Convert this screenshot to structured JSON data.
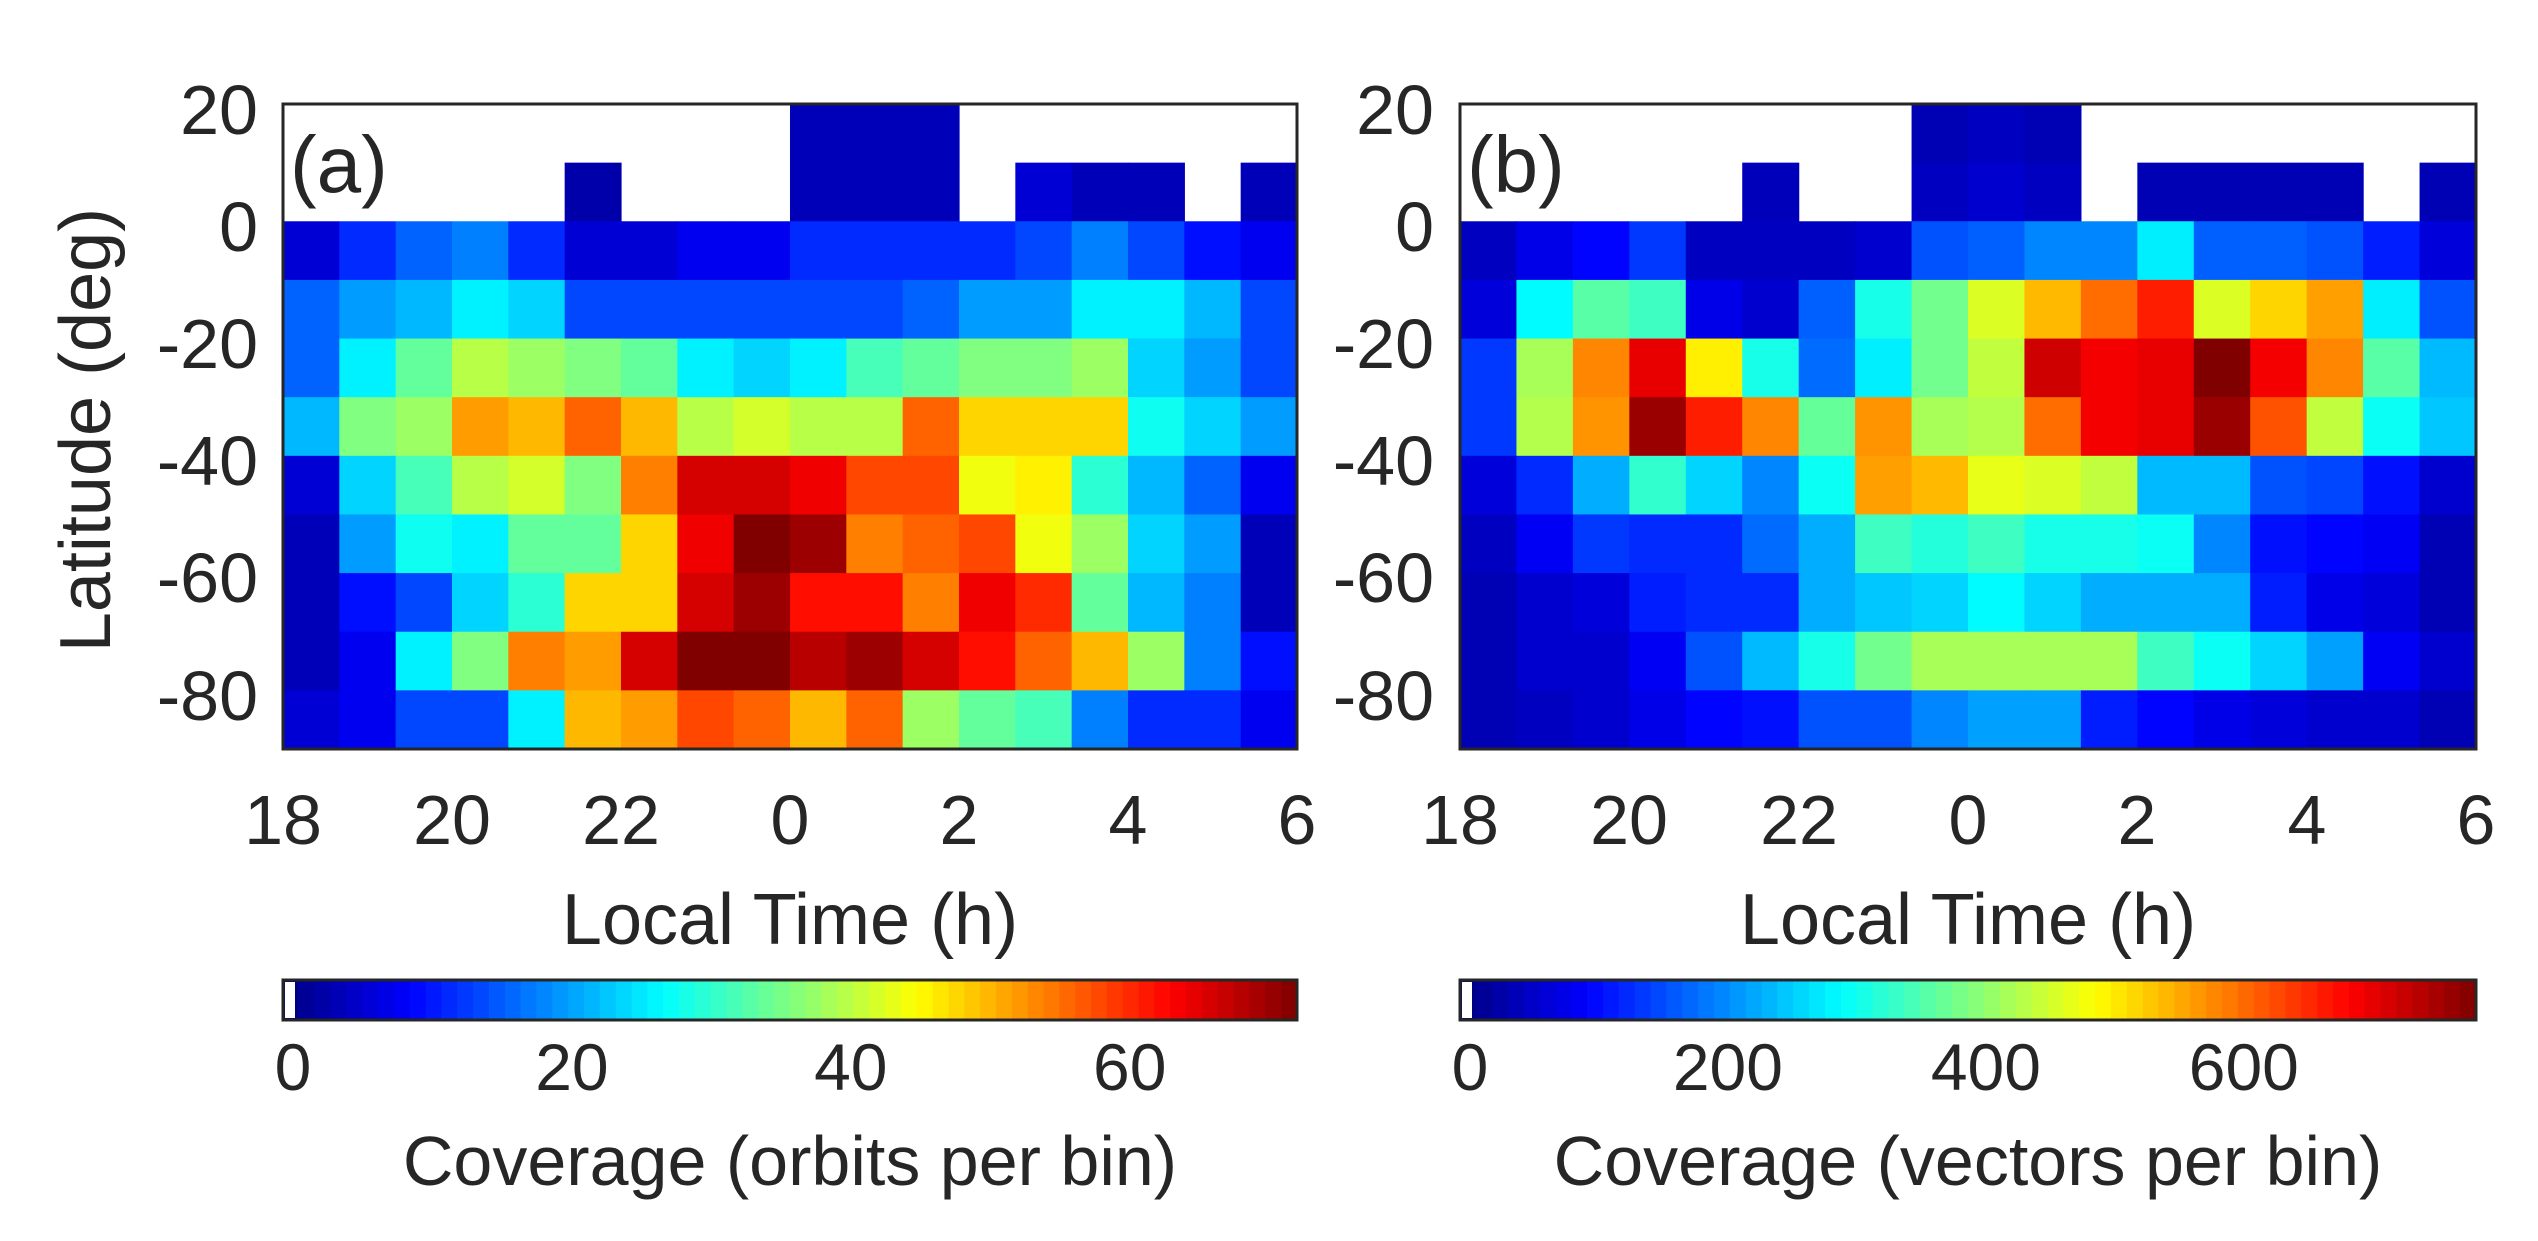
{
  "chart_data": [
    {
      "type": "heatmap",
      "panel_label": "(a)",
      "xlabel": "Local Time (h)",
      "ylabel": "Latitude (deg)",
      "x_tick_labels": [
        "18",
        "20",
        "22",
        "0",
        "2",
        "4",
        "6"
      ],
      "y_tick_labels": [
        "20",
        "0",
        "-20",
        "-40",
        "-60",
        "-80"
      ],
      "x_bins_local_time_start": [
        18,
        18.667,
        19.333,
        20,
        20.667,
        21.333,
        22,
        22.667,
        23.333,
        0,
        0.667,
        1.333,
        2,
        2.667,
        3.333,
        4,
        4.667,
        5.333
      ],
      "bin_width_hours": 0.667,
      "y_bins_latitude_top": [
        20,
        10,
        0,
        -10,
        -20,
        -30,
        -40,
        -50,
        -60,
        -70,
        -80
      ],
      "bin_height_deg": 10,
      "ylim": [
        -90,
        20
      ],
      "colorbar": {
        "label": "Coverage (orbits per bin)",
        "min": 0,
        "max": 72,
        "tick_labels": [
          "0",
          "20",
          "40",
          "60"
        ],
        "tick_values": [
          0,
          20,
          40,
          60
        ]
      },
      "values": [
        [
          null,
          null,
          null,
          null,
          null,
          null,
          null,
          null,
          null,
          4,
          4,
          4,
          null,
          null,
          null,
          null,
          null,
          null
        ],
        [
          null,
          null,
          null,
          null,
          null,
          3,
          null,
          null,
          null,
          4,
          4,
          4,
          null,
          6,
          4,
          4,
          null,
          4
        ],
        [
          6,
          12,
          16,
          18,
          12,
          6,
          6,
          8,
          8,
          12,
          12,
          12,
          12,
          14,
          18,
          14,
          10,
          8
        ],
        [
          16,
          20,
          22,
          26,
          24,
          14,
          14,
          14,
          14,
          14,
          14,
          16,
          20,
          20,
          26,
          26,
          22,
          14
        ],
        [
          16,
          26,
          34,
          40,
          38,
          36,
          34,
          26,
          24,
          26,
          32,
          34,
          36,
          36,
          38,
          24,
          20,
          14
        ],
        [
          22,
          36,
          38,
          52,
          50,
          56,
          50,
          40,
          42,
          40,
          40,
          56,
          48,
          48,
          48,
          28,
          24,
          20
        ],
        [
          6,
          24,
          32,
          40,
          42,
          36,
          54,
          66,
          66,
          64,
          58,
          58,
          44,
          46,
          30,
          22,
          16,
          8
        ],
        [
          4,
          20,
          28,
          26,
          34,
          34,
          48,
          64,
          72,
          70,
          54,
          56,
          58,
          44,
          38,
          24,
          20,
          4
        ],
        [
          4,
          10,
          14,
          24,
          30,
          48,
          48,
          66,
          70,
          62,
          62,
          54,
          64,
          60,
          34,
          22,
          18,
          4
        ],
        [
          4,
          8,
          26,
          36,
          54,
          52,
          66,
          72,
          72,
          68,
          70,
          66,
          62,
          56,
          50,
          38,
          18,
          10
        ],
        [
          6,
          8,
          14,
          14,
          26,
          50,
          52,
          58,
          56,
          50,
          56,
          38,
          34,
          32,
          18,
          12,
          12,
          8
        ]
      ]
    },
    {
      "type": "heatmap",
      "panel_label": "(b)",
      "xlabel": "Local Time (h)",
      "ylabel": "",
      "x_tick_labels": [
        "18",
        "20",
        "22",
        "0",
        "2",
        "4",
        "6"
      ],
      "y_tick_labels": [
        "20",
        "0",
        "-20",
        "-40",
        "-60",
        "-80"
      ],
      "x_bins_local_time_start": [
        18,
        18.667,
        19.333,
        20,
        20.667,
        21.333,
        22,
        22.667,
        23.333,
        0,
        0.667,
        1.333,
        2,
        2.667,
        3.333,
        4,
        4.667,
        5.333
      ],
      "bin_width_hours": 0.667,
      "y_bins_latitude_top": [
        20,
        10,
        0,
        -10,
        -20,
        -30,
        -40,
        -50,
        -60,
        -70,
        -80
      ],
      "bin_height_deg": 10,
      "ylim": [
        -90,
        20
      ],
      "colorbar": {
        "label": "Coverage (vectors per bin)",
        "min": 0,
        "max": 780,
        "tick_labels": [
          "0",
          "200",
          "400",
          "600"
        ],
        "tick_values": [
          0,
          200,
          400,
          600
        ]
      },
      "values": [
        [
          null,
          null,
          null,
          null,
          null,
          null,
          null,
          null,
          40,
          50,
          40,
          null,
          null,
          null,
          null,
          null,
          null,
          null
        ],
        [
          null,
          null,
          null,
          null,
          null,
          45,
          null,
          null,
          50,
          60,
          50,
          null,
          40,
          40,
          40,
          40,
          null,
          40
        ],
        [
          50,
          80,
          100,
          140,
          50,
          50,
          50,
          60,
          160,
          170,
          200,
          200,
          280,
          170,
          170,
          160,
          120,
          70
        ],
        [
          70,
          290,
          360,
          340,
          80,
          60,
          170,
          310,
          380,
          460,
          540,
          600,
          660,
          460,
          520,
          560,
          280,
          160
        ],
        [
          140,
          420,
          580,
          700,
          500,
          310,
          180,
          280,
          380,
          440,
          720,
          690,
          700,
          780,
          690,
          580,
          360,
          240
        ],
        [
          140,
          430,
          570,
          760,
          660,
          580,
          370,
          570,
          420,
          430,
          600,
          690,
          700,
          760,
          620,
          440,
          300,
          250
        ],
        [
          70,
          130,
          230,
          330,
          260,
          200,
          300,
          560,
          540,
          470,
          460,
          440,
          240,
          240,
          160,
          150,
          110,
          60
        ],
        [
          50,
          90,
          140,
          130,
          130,
          180,
          230,
          340,
          320,
          340,
          310,
          310,
          300,
          200,
          110,
          100,
          90,
          40
        ],
        [
          40,
          60,
          70,
          120,
          130,
          130,
          230,
          250,
          260,
          290,
          260,
          230,
          230,
          230,
          120,
          80,
          70,
          40
        ],
        [
          40,
          60,
          60,
          90,
          160,
          240,
          310,
          380,
          420,
          420,
          420,
          420,
          340,
          300,
          260,
          220,
          90,
          60
        ],
        [
          40,
          50,
          60,
          80,
          100,
          110,
          160,
          160,
          200,
          220,
          220,
          120,
          100,
          80,
          70,
          60,
          60,
          40
        ]
      ]
    }
  ]
}
